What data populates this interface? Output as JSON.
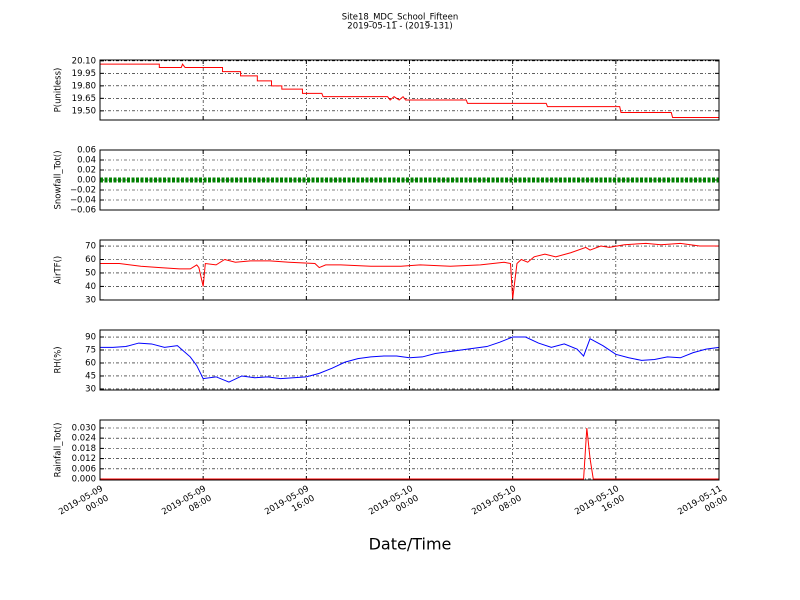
{
  "title": "Site18_MDC_School_Fifteen",
  "subtitle": "2019-05-11 - (2019-131)",
  "xlabel": "Date/Time",
  "xlim": [
    "2019-05-09 00:00",
    "2019-05-11 00:00"
  ],
  "xticks": [
    "2019-05-09 00:00",
    "2019-05-09 08:00",
    "2019-05-09 16:00",
    "2019-05-10 00:00",
    "2019-05-10 08:00",
    "2019-05-10 16:00",
    "2019-05-11 00:00"
  ],
  "grid": true,
  "chart_data": [
    {
      "type": "line",
      "ylabel": "P(unitless)",
      "color": "#ff0000",
      "ylim": [
        19.39,
        20.11
      ],
      "yticks": [
        {
          "value": 19.5,
          "label": "19.50"
        },
        {
          "value": 19.65,
          "label": "19.65"
        },
        {
          "value": 19.8,
          "label": "19.80"
        },
        {
          "value": 19.95,
          "label": "19.95"
        },
        {
          "value": 20.1,
          "label": "20.10"
        }
      ],
      "x": [
        "2019-05-09 00:00",
        "2019-05-09 04:36",
        "2019-05-09 04:36",
        "2019-05-09 06:18",
        "2019-05-09 06:24",
        "2019-05-09 06:36",
        "2019-05-09 09:30",
        "2019-05-09 09:30",
        "2019-05-09 10:54",
        "2019-05-09 10:54",
        "2019-05-09 12:12",
        "2019-05-09 12:12",
        "2019-05-09 13:18",
        "2019-05-09 13:18",
        "2019-05-09 14:06",
        "2019-05-09 14:06",
        "2019-05-09 15:42",
        "2019-05-09 15:42",
        "2019-05-09 17:12",
        "2019-05-09 17:18",
        "2019-05-09 22:18",
        "2019-05-09 22:30",
        "2019-05-09 22:48",
        "2019-05-09 23:12",
        "2019-05-09 23:30",
        "2019-05-09 23:42",
        "2019-05-10 04:24",
        "2019-05-10 04:30",
        "2019-05-10 10:36",
        "2019-05-10 10:42",
        "2019-05-10 16:18",
        "2019-05-10 16:24",
        "2019-05-10 20:18",
        "2019-05-10 20:24",
        "2019-05-11 00:00"
      ],
      "values": [
        20.06,
        20.06,
        20.02,
        20.02,
        20.06,
        20.02,
        20.02,
        19.97,
        19.97,
        19.92,
        19.92,
        19.86,
        19.86,
        19.8,
        19.8,
        19.76,
        19.76,
        19.71,
        19.71,
        19.67,
        19.67,
        19.63,
        19.67,
        19.63,
        19.67,
        19.63,
        19.63,
        19.59,
        19.59,
        19.55,
        19.55,
        19.48,
        19.48,
        19.42,
        19.42
      ]
    },
    {
      "type": "line",
      "ylabel": "Snowfall_Tot()",
      "color": "#008000",
      "dotted": true,
      "ylim": [
        -0.06,
        0.06
      ],
      "yticks": [
        {
          "value": -0.06,
          "label": "−0.06"
        },
        {
          "value": -0.04,
          "label": "−0.04"
        },
        {
          "value": -0.02,
          "label": "−0.02"
        },
        {
          "value": 0,
          "label": "0.00"
        },
        {
          "value": 0.02,
          "label": "0.02"
        },
        {
          "value": 0.04,
          "label": "0.04"
        },
        {
          "value": 0.06,
          "label": "0.06"
        }
      ],
      "x": [
        "2019-05-09 00:00",
        "2019-05-09 02:00",
        "2019-05-09 04:00",
        "2019-05-09 06:00",
        "2019-05-09 08:00",
        "2019-05-09 10:00",
        "2019-05-09 12:00",
        "2019-05-09 14:00",
        "2019-05-09 16:00",
        "2019-05-09 18:00",
        "2019-05-09 20:00",
        "2019-05-09 22:00",
        "2019-05-10 00:00",
        "2019-05-10 02:00",
        "2019-05-10 04:00",
        "2019-05-10 06:00",
        "2019-05-10 08:00",
        "2019-05-10 10:00",
        "2019-05-10 12:00",
        "2019-05-10 14:00",
        "2019-05-10 16:00",
        "2019-05-10 18:00",
        "2019-05-10 20:00",
        "2019-05-10 22:00",
        "2019-05-11 00:00"
      ],
      "values": [
        0,
        0,
        0,
        0,
        0,
        0,
        0,
        0,
        0,
        0,
        0,
        0,
        0,
        0,
        0,
        0,
        0,
        0,
        0,
        0,
        0,
        0,
        0,
        0,
        0
      ]
    },
    {
      "type": "line",
      "ylabel": "AirTF()",
      "color": "#ff0000",
      "ylim": [
        29.9,
        74.5
      ],
      "yticks": [
        30,
        40,
        50,
        60,
        70
      ],
      "x": [
        "2019-05-09 00:00",
        "2019-05-09 01:30",
        "2019-05-09 03:10",
        "2019-05-09 04:40",
        "2019-05-09 06:10",
        "2019-05-09 07:00",
        "2019-05-09 07:30",
        "2019-05-09 07:40",
        "2019-05-09 08:00",
        "2019-05-09 08:10",
        "2019-05-09 09:00",
        "2019-05-09 09:40",
        "2019-05-09 10:30",
        "2019-05-09 11:40",
        "2019-05-09 13:10",
        "2019-05-09 14:40",
        "2019-05-09 16:40",
        "2019-05-09 17:00",
        "2019-05-09 17:30",
        "2019-05-09 18:40",
        "2019-05-09 21:00",
        "2019-05-09 23:20",
        "2019-05-10 00:50",
        "2019-05-10 03:10",
        "2019-05-10 05:30",
        "2019-05-10 07:20",
        "2019-05-10 07:50",
        "2019-05-10 08:00",
        "2019-05-10 08:20",
        "2019-05-10 08:40",
        "2019-05-10 09:10",
        "2019-05-10 09:40",
        "2019-05-10 10:30",
        "2019-05-10 11:20",
        "2019-05-10 12:30",
        "2019-05-10 13:40",
        "2019-05-10 14:00",
        "2019-05-10 14:50",
        "2019-05-10 15:30",
        "2019-05-10 16:40",
        "2019-05-10 18:20",
        "2019-05-10 19:30",
        "2019-05-10 21:00",
        "2019-05-10 22:30",
        "2019-05-11 00:00"
      ],
      "values": [
        57,
        57,
        55,
        54,
        53,
        53,
        56,
        54,
        40,
        57,
        56,
        60,
        58,
        59,
        59,
        58,
        57,
        54,
        56,
        56,
        55,
        55,
        56,
        55,
        56,
        58,
        57,
        31,
        57,
        60,
        58,
        62,
        64,
        62,
        65,
        69,
        67,
        70,
        69,
        71,
        72,
        71,
        72,
        70,
        70
      ]
    },
    {
      "type": "line",
      "ylabel": "RH(%)",
      "color": "#0000ff",
      "ylim": [
        28.8,
        98.1
      ],
      "yticks": [
        30,
        45,
        60,
        75,
        90
      ],
      "x": [
        "2019-05-09 00:00",
        "2019-05-09 01:00",
        "2019-05-09 02:00",
        "2019-05-09 03:00",
        "2019-05-09 04:00",
        "2019-05-09 05:00",
        "2019-05-09 06:00",
        "2019-05-09 07:00",
        "2019-05-09 07:30",
        "2019-05-09 08:00",
        "2019-05-09 09:00",
        "2019-05-09 10:00",
        "2019-05-09 11:00",
        "2019-05-09 12:00",
        "2019-05-09 13:00",
        "2019-05-09 14:00",
        "2019-05-09 15:00",
        "2019-05-09 16:00",
        "2019-05-09 17:00",
        "2019-05-09 18:00",
        "2019-05-09 19:00",
        "2019-05-09 20:00",
        "2019-05-09 21:00",
        "2019-05-09 22:00",
        "2019-05-09 23:00",
        "2019-05-10 00:00",
        "2019-05-10 01:00",
        "2019-05-10 02:00",
        "2019-05-10 03:00",
        "2019-05-10 04:00",
        "2019-05-10 05:00",
        "2019-05-10 06:00",
        "2019-05-10 07:00",
        "2019-05-10 08:00",
        "2019-05-10 09:00",
        "2019-05-10 10:00",
        "2019-05-10 11:00",
        "2019-05-10 12:00",
        "2019-05-10 13:00",
        "2019-05-10 13:30",
        "2019-05-10 14:00",
        "2019-05-10 15:00",
        "2019-05-10 16:00",
        "2019-05-10 17:00",
        "2019-05-10 18:00",
        "2019-05-10 19:00",
        "2019-05-10 20:00",
        "2019-05-10 21:00",
        "2019-05-10 22:00",
        "2019-05-10 23:00",
        "2019-05-11 00:00"
      ],
      "values": [
        78,
        78,
        79,
        83,
        82,
        78,
        80,
        67,
        57,
        42,
        44,
        38,
        45,
        43,
        44,
        42,
        43,
        44,
        48,
        54,
        61,
        65,
        67,
        68,
        68,
        66,
        67,
        71,
        73,
        75,
        77,
        79,
        84,
        90,
        90,
        83,
        78,
        82,
        76,
        68,
        88,
        80,
        70,
        66,
        63,
        64,
        67,
        66,
        72,
        76,
        78
      ]
    },
    {
      "type": "line",
      "ylabel": "Rainfall_Tot()",
      "color": "#ff0000",
      "ylim": [
        -0.0006,
        0.0347
      ],
      "yticks": [
        {
          "value": 0,
          "label": "0.000"
        },
        {
          "value": 0.006,
          "label": "0.006"
        },
        {
          "value": 0.012,
          "label": "0.012"
        },
        {
          "value": 0.018,
          "label": "0.018"
        },
        {
          "value": 0.024,
          "label": "0.024"
        },
        {
          "value": 0.03,
          "label": "0.030"
        }
      ],
      "x": [
        "2019-05-09 00:00",
        "2019-05-10 13:30",
        "2019-05-10 13:45",
        "2019-05-10 14:00",
        "2019-05-10 14:15",
        "2019-05-11 00:00"
      ],
      "values": [
        0,
        0,
        0.03,
        0.012,
        0,
        0
      ]
    }
  ]
}
